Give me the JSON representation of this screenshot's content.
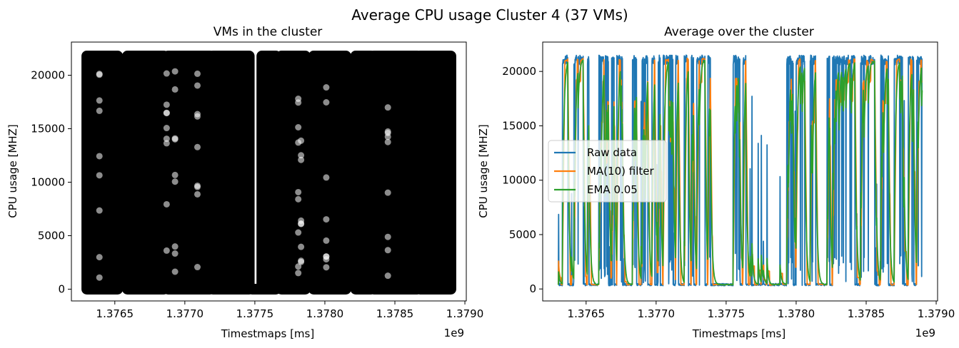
{
  "figure": {
    "suptitle": "Average CPU usage Cluster 4 (37 VMs)"
  },
  "chart_data": [
    {
      "type": "scatter",
      "title": "VMs in the cluster",
      "xlabel": "Timestmaps [ms]",
      "ylabel": "CPU usage [MHZ]",
      "x_offset_label": "1e9",
      "xlim": [
        1.37619,
        1.37901
      ],
      "ylim": [
        -1100,
        23100
      ],
      "x_ticks": [
        1.3765,
        1.377,
        1.3775,
        1.378,
        1.3785,
        1.379
      ],
      "x_tick_labels": [
        "1.3765",
        "1.3770",
        "1.3775",
        "1.3780",
        "1.3785",
        "1.3790"
      ],
      "y_ticks": [
        0,
        5000,
        10000,
        15000,
        20000
      ],
      "y_tick_labels": [
        "0",
        "5000",
        "10000",
        "15000",
        "20000"
      ],
      "grid": false,
      "marker_color": "#000000",
      "marker_alpha": 0.2,
      "dense_bands": [
        [
          1.3763,
          1.37652
        ],
        [
          1.37659,
          1.37685
        ],
        [
          1.37688,
          1.37718
        ],
        [
          1.3772,
          1.37746
        ],
        [
          1.37755,
          1.37765
        ],
        [
          1.37769,
          1.37786
        ],
        [
          1.37792,
          1.37815
        ],
        [
          1.37822,
          1.37833
        ],
        [
          1.37835,
          1.37866
        ],
        [
          1.37868,
          1.3789
        ]
      ],
      "sparse_columns": [
        1.37656,
        1.37727,
        1.37775,
        1.37779,
        1.37789,
        1.37818
      ],
      "baseline_segment": [
        1.37748,
        1.37762
      ],
      "y_max_observed": 21800,
      "y_min_observed": 0
    },
    {
      "type": "line",
      "title": "Average over the cluster",
      "xlabel": "Timestmaps [ms]",
      "ylabel": "CPU usage [MHZ]",
      "x_offset_label": "1e9",
      "xlim": [
        1.37619,
        1.37901
      ],
      "ylim": [
        -1100,
        22700
      ],
      "x_ticks": [
        1.3765,
        1.377,
        1.3775,
        1.378,
        1.3785,
        1.379
      ],
      "x_tick_labels": [
        "1.3765",
        "1.3770",
        "1.3775",
        "1.3780",
        "1.3785",
        "1.3790"
      ],
      "y_ticks": [
        0,
        5000,
        10000,
        15000,
        20000
      ],
      "y_tick_labels": [
        "0",
        "5000",
        "10000",
        "15000",
        "20000"
      ],
      "grid": false,
      "legend_position": "center-left",
      "series": [
        {
          "name": "Raw data",
          "color": "#1f77b4"
        },
        {
          "name": "MA(10) filter",
          "color": "#ff7f0e"
        },
        {
          "name": "EMA 0.05",
          "color": "#2ca02c"
        }
      ],
      "high_intervals": [
        [
          1.37633,
          1.37637
        ],
        [
          1.37641,
          1.37648
        ],
        [
          1.37651,
          1.37652
        ],
        [
          1.37659,
          1.37666
        ],
        [
          1.37668,
          1.3767
        ],
        [
          1.37672,
          1.37676
        ],
        [
          1.37683,
          1.37686
        ],
        [
          1.3769,
          1.37694
        ],
        [
          1.37697,
          1.37699
        ],
        [
          1.37701,
          1.37703
        ],
        [
          1.37705,
          1.37712
        ],
        [
          1.37714,
          1.37716
        ],
        [
          1.3772,
          1.37723
        ],
        [
          1.37725,
          1.37727
        ],
        [
          1.37729,
          1.37735
        ],
        [
          1.37737,
          1.37739
        ],
        [
          1.37755,
          1.3776
        ],
        [
          1.37762,
          1.37764
        ],
        [
          1.37793,
          1.37798
        ],
        [
          1.378,
          1.37806
        ],
        [
          1.3781,
          1.37814
        ],
        [
          1.37822,
          1.37824
        ],
        [
          1.37826,
          1.37842
        ],
        [
          1.37846,
          1.37856
        ],
        [
          1.3786,
          1.37866
        ],
        [
          1.3787,
          1.37876
        ],
        [
          1.3788,
          1.37884
        ],
        [
          1.37886,
          1.3789
        ]
      ],
      "high_level": 21500,
      "low_level": 300
    }
  ]
}
